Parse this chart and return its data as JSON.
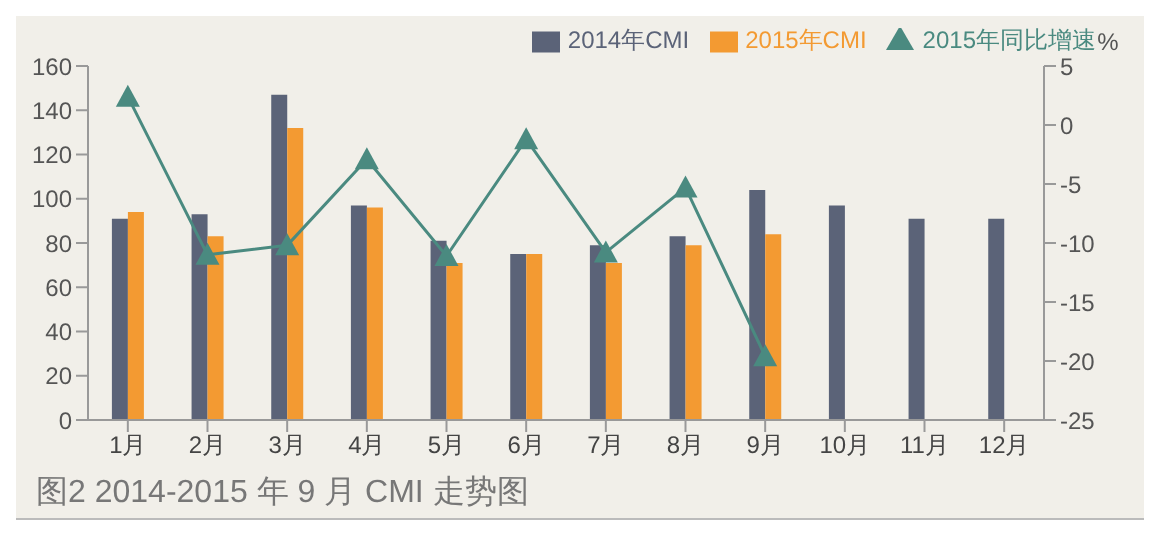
{
  "chart_data": {
    "type": "bar",
    "title": "图2 2014-2015 年 9 月 CMI 走势图",
    "y2label": "%",
    "categories": [
      "1月",
      "2月",
      "3月",
      "4月",
      "5月",
      "6月",
      "7月",
      "8月",
      "9月",
      "10月",
      "11月",
      "12月"
    ],
    "series": [
      {
        "name": "2014年CMI",
        "color": "#5b6378",
        "values": [
          91,
          93,
          147,
          97,
          81,
          75,
          79,
          83,
          104,
          97,
          91,
          91
        ]
      },
      {
        "name": "2015年CMI",
        "color": "#f39a32",
        "values": [
          94,
          83,
          132,
          96,
          71,
          75,
          71,
          79,
          84,
          null,
          null,
          null
        ]
      },
      {
        "name": "2015年同比增速",
        "type": "line",
        "axis": "y2",
        "color": "#4a8a80",
        "marker": "triangle",
        "values": [
          2.4,
          -11.0,
          -10.2,
          -2.9,
          -11.1,
          -1.2,
          -10.8,
          -5.3,
          -19.6,
          null,
          null,
          null
        ]
      }
    ],
    "ylim": [
      0,
      160
    ],
    "yticks": [
      0,
      20,
      40,
      60,
      80,
      100,
      120,
      140,
      160
    ],
    "y2lim": [
      -25,
      5
    ],
    "y2ticks": [
      -25,
      -20,
      -15,
      -10,
      -5,
      0,
      5
    ],
    "grid": false,
    "legend": "top right"
  }
}
